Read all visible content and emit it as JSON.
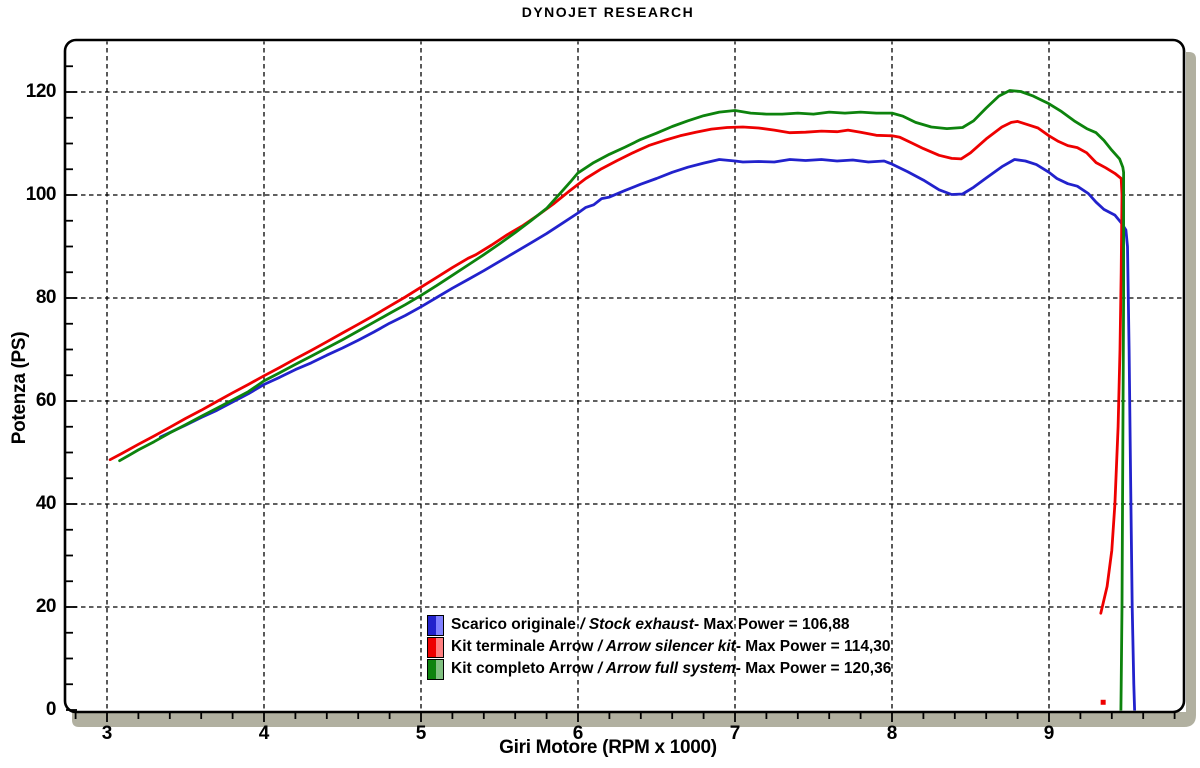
{
  "title": "DYNOJET RESEARCH",
  "chart_data": {
    "type": "line",
    "title": "DYNOJET RESEARCH",
    "xlabel": "Giri Motore (RPM x 1000)",
    "ylabel": "Potenza (PS)",
    "xlim": [
      2.73,
      9.85
    ],
    "ylim": [
      0,
      130
    ],
    "x_ticks": [
      3,
      4,
      5,
      6,
      7,
      8,
      9
    ],
    "x_minor_tick_step": 0.2,
    "y_ticks": [
      0,
      20,
      40,
      60,
      80,
      100,
      120
    ],
    "y_minor_tick_step": 5,
    "grid": "dashed",
    "legend_position": "bottom-center-inside",
    "legend_separator": " / ",
    "legend_max_label": " - Max Power = ",
    "series": [
      {
        "name_it": "Scarico originale",
        "name_en": "Stock exhaust",
        "max_power": "106,88",
        "color": "#2222cc",
        "color_light": "#8080ff",
        "points": [
          [
            3.34,
            53
          ],
          [
            3.5,
            55.3
          ],
          [
            3.6,
            56.8
          ],
          [
            3.7,
            58.2
          ],
          [
            3.8,
            59.8
          ],
          [
            3.9,
            61.4
          ],
          [
            4.0,
            63.2
          ],
          [
            4.1,
            64.6
          ],
          [
            4.2,
            66.1
          ],
          [
            4.3,
            67.4
          ],
          [
            4.4,
            68.9
          ],
          [
            4.5,
            70.3
          ],
          [
            4.6,
            71.8
          ],
          [
            4.7,
            73.4
          ],
          [
            4.8,
            75.1
          ],
          [
            4.9,
            76.6
          ],
          [
            5.0,
            78.3
          ],
          [
            5.1,
            80.1
          ],
          [
            5.2,
            81.9
          ],
          [
            5.3,
            83.6
          ],
          [
            5.4,
            85.3
          ],
          [
            5.5,
            87.1
          ],
          [
            5.6,
            88.9
          ],
          [
            5.7,
            90.7
          ],
          [
            5.8,
            92.5
          ],
          [
            5.9,
            94.5
          ],
          [
            6.0,
            96.5
          ],
          [
            6.05,
            97.6
          ],
          [
            6.1,
            98.1
          ],
          [
            6.15,
            99.3
          ],
          [
            6.2,
            99.6
          ],
          [
            6.3,
            100.9
          ],
          [
            6.4,
            102.1
          ],
          [
            6.5,
            103.2
          ],
          [
            6.6,
            104.4
          ],
          [
            6.7,
            105.4
          ],
          [
            6.8,
            106.2
          ],
          [
            6.9,
            106.9
          ],
          [
            7.0,
            106.6
          ],
          [
            7.05,
            106.4
          ],
          [
            7.15,
            106.5
          ],
          [
            7.25,
            106.4
          ],
          [
            7.35,
            106.9
          ],
          [
            7.45,
            106.7
          ],
          [
            7.55,
            106.9
          ],
          [
            7.65,
            106.6
          ],
          [
            7.75,
            106.8
          ],
          [
            7.85,
            106.4
          ],
          [
            7.95,
            106.6
          ],
          [
            8.0,
            106.0
          ],
          [
            8.1,
            104.5
          ],
          [
            8.2,
            102.9
          ],
          [
            8.3,
            101.0
          ],
          [
            8.38,
            100.1
          ],
          [
            8.45,
            100.2
          ],
          [
            8.52,
            101.5
          ],
          [
            8.6,
            103.3
          ],
          [
            8.7,
            105.5
          ],
          [
            8.78,
            106.9
          ],
          [
            8.85,
            106.6
          ],
          [
            8.92,
            105.9
          ],
          [
            9.0,
            104.4
          ],
          [
            9.05,
            103.2
          ],
          [
            9.12,
            102.2
          ],
          [
            9.18,
            101.7
          ],
          [
            9.25,
            100.3
          ],
          [
            9.3,
            98.6
          ],
          [
            9.35,
            97.2
          ],
          [
            9.42,
            96.1
          ],
          [
            9.46,
            94.6
          ],
          [
            9.49,
            93.2
          ],
          [
            9.5,
            90
          ],
          [
            9.51,
            70
          ],
          [
            9.52,
            45
          ],
          [
            9.53,
            20
          ],
          [
            9.54,
            5
          ],
          [
            9.545,
            0
          ]
        ]
      },
      {
        "name_it": "Kit terminale Arrow",
        "name_en": "Arrow silencer kit",
        "max_power": "114,30",
        "color": "#ee0000",
        "color_light": "#ff8080",
        "points": [
          [
            3.02,
            48.6
          ],
          [
            3.1,
            49.9
          ],
          [
            3.2,
            51.6
          ],
          [
            3.3,
            53.2
          ],
          [
            3.4,
            54.9
          ],
          [
            3.5,
            56.6
          ],
          [
            3.6,
            58.2
          ],
          [
            3.7,
            59.9
          ],
          [
            3.8,
            61.6
          ],
          [
            3.9,
            63.2
          ],
          [
            4.0,
            64.9
          ],
          [
            4.1,
            66.5
          ],
          [
            4.2,
            68.2
          ],
          [
            4.3,
            69.8
          ],
          [
            4.4,
            71.5
          ],
          [
            4.5,
            73.2
          ],
          [
            4.6,
            74.9
          ],
          [
            4.7,
            76.6
          ],
          [
            4.8,
            78.4
          ],
          [
            4.9,
            80.2
          ],
          [
            5.0,
            82.1
          ],
          [
            5.1,
            84.0
          ],
          [
            5.2,
            85.9
          ],
          [
            5.3,
            87.7
          ],
          [
            5.35,
            88.4
          ],
          [
            5.45,
            90.3
          ],
          [
            5.55,
            92.3
          ],
          [
            5.65,
            94.1
          ],
          [
            5.75,
            96.2
          ],
          [
            5.85,
            98.4
          ],
          [
            5.95,
            100.9
          ],
          [
            6.05,
            103.2
          ],
          [
            6.15,
            105.1
          ],
          [
            6.25,
            106.7
          ],
          [
            6.35,
            108.2
          ],
          [
            6.45,
            109.6
          ],
          [
            6.55,
            110.6
          ],
          [
            6.65,
            111.5
          ],
          [
            6.75,
            112.2
          ],
          [
            6.85,
            112.8
          ],
          [
            6.95,
            113.1
          ],
          [
            7.05,
            113.2
          ],
          [
            7.15,
            113.0
          ],
          [
            7.25,
            112.6
          ],
          [
            7.35,
            112.1
          ],
          [
            7.45,
            112.2
          ],
          [
            7.55,
            112.4
          ],
          [
            7.65,
            112.3
          ],
          [
            7.72,
            112.6
          ],
          [
            7.8,
            112.2
          ],
          [
            7.9,
            111.6
          ],
          [
            8.0,
            111.5
          ],
          [
            8.05,
            111.2
          ],
          [
            8.12,
            110.2
          ],
          [
            8.2,
            109.0
          ],
          [
            8.3,
            107.7
          ],
          [
            8.38,
            107.1
          ],
          [
            8.44,
            107.0
          ],
          [
            8.5,
            108.2
          ],
          [
            8.6,
            110.9
          ],
          [
            8.7,
            113.2
          ],
          [
            8.76,
            114.1
          ],
          [
            8.8,
            114.3
          ],
          [
            8.86,
            113.7
          ],
          [
            8.93,
            113.0
          ],
          [
            9.0,
            111.5
          ],
          [
            9.06,
            110.4
          ],
          [
            9.12,
            109.6
          ],
          [
            9.18,
            109.2
          ],
          [
            9.24,
            108.2
          ],
          [
            9.3,
            106.3
          ],
          [
            9.36,
            105.3
          ],
          [
            9.42,
            104.2
          ],
          [
            9.46,
            103.2
          ],
          [
            9.465,
            100
          ],
          [
            9.46,
            85
          ],
          [
            9.452,
            70
          ],
          [
            9.44,
            55
          ],
          [
            9.42,
            40
          ],
          [
            9.4,
            31
          ],
          [
            9.37,
            24
          ],
          [
            9.33,
            18.8
          ]
        ],
        "end_dot": [
          9.345,
          1.5
        ]
      },
      {
        "name_it": "Kit completo Arrow",
        "name_en": "Arrow full system",
        "max_power": "120,36",
        "color": "#0d830d",
        "color_light": "#80c080",
        "points": [
          [
            3.08,
            48.4
          ],
          [
            3.2,
            50.5
          ],
          [
            3.3,
            52.1
          ],
          [
            3.4,
            53.8
          ],
          [
            3.5,
            55.4
          ],
          [
            3.6,
            57.0
          ],
          [
            3.7,
            58.6
          ],
          [
            3.8,
            60.2
          ],
          [
            3.9,
            61.8
          ],
          [
            4.0,
            63.9
          ],
          [
            4.1,
            65.5
          ],
          [
            4.2,
            67.1
          ],
          [
            4.3,
            68.7
          ],
          [
            4.4,
            70.3
          ],
          [
            4.5,
            71.9
          ],
          [
            4.6,
            73.6
          ],
          [
            4.7,
            75.3
          ],
          [
            4.8,
            77.0
          ],
          [
            4.9,
            78.7
          ],
          [
            5.0,
            80.5
          ],
          [
            5.1,
            82.4
          ],
          [
            5.2,
            84.4
          ],
          [
            5.3,
            86.4
          ],
          [
            5.4,
            88.4
          ],
          [
            5.5,
            90.5
          ],
          [
            5.6,
            92.7
          ],
          [
            5.7,
            95.0
          ],
          [
            5.8,
            97.4
          ],
          [
            5.9,
            100.8
          ],
          [
            5.95,
            102.5
          ],
          [
            6.0,
            104.3
          ],
          [
            6.1,
            106.3
          ],
          [
            6.2,
            107.9
          ],
          [
            6.3,
            109.3
          ],
          [
            6.4,
            110.8
          ],
          [
            6.5,
            112.0
          ],
          [
            6.6,
            113.3
          ],
          [
            6.7,
            114.4
          ],
          [
            6.8,
            115.4
          ],
          [
            6.9,
            116.1
          ],
          [
            7.0,
            116.4
          ],
          [
            7.1,
            115.9
          ],
          [
            7.2,
            115.7
          ],
          [
            7.3,
            115.7
          ],
          [
            7.4,
            115.9
          ],
          [
            7.5,
            115.7
          ],
          [
            7.6,
            116.1
          ],
          [
            7.7,
            115.9
          ],
          [
            7.8,
            116.1
          ],
          [
            7.9,
            115.9
          ],
          [
            8.0,
            115.9
          ],
          [
            8.07,
            115.3
          ],
          [
            8.15,
            114.1
          ],
          [
            8.25,
            113.2
          ],
          [
            8.35,
            112.9
          ],
          [
            8.45,
            113.1
          ],
          [
            8.52,
            114.4
          ],
          [
            8.6,
            116.9
          ],
          [
            8.68,
            119.2
          ],
          [
            8.75,
            120.3
          ],
          [
            8.82,
            120.1
          ],
          [
            8.9,
            119.2
          ],
          [
            9.0,
            117.7
          ],
          [
            9.08,
            116.2
          ],
          [
            9.16,
            114.4
          ],
          [
            9.24,
            112.9
          ],
          [
            9.3,
            112.1
          ],
          [
            9.35,
            110.6
          ],
          [
            9.4,
            108.7
          ],
          [
            9.45,
            107.0
          ],
          [
            9.47,
            105.4
          ],
          [
            9.475,
            104.4
          ],
          [
            9.475,
            80
          ],
          [
            9.47,
            50
          ],
          [
            9.465,
            20
          ],
          [
            9.46,
            5
          ],
          [
            9.458,
            0
          ]
        ]
      }
    ]
  },
  "colors": {
    "grid": "#000000",
    "frame": "#000000",
    "shadow_bar": "#b1b0a0",
    "background": "#ffffff"
  }
}
